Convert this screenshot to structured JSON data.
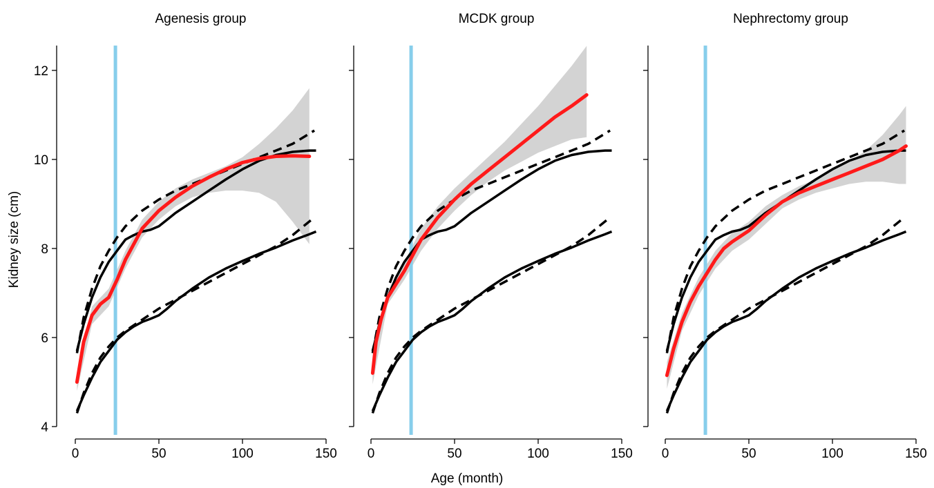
{
  "figure": {
    "ylabel": "Kidney size (cm)",
    "xlabel": "Age (month)"
  },
  "colors": {
    "observed": "#ff1a1a",
    "band": "#d3d3d3",
    "reference": "#000000",
    "marker_line": "#87ceeb"
  },
  "chart_data": [
    {
      "type": "line",
      "title": "Agenesis group",
      "xlim": [
        0,
        150
      ],
      "ylim": [
        4,
        12.5
      ],
      "xticks": [
        0,
        50,
        100,
        150
      ],
      "yticks": [
        4,
        6,
        8,
        10,
        12
      ],
      "vline_x": 24,
      "series": [
        {
          "role": "observed",
          "style": "solid-red",
          "x": [
            1,
            5,
            10,
            15,
            20,
            25,
            30,
            40,
            50,
            60,
            70,
            80,
            90,
            100,
            110,
            120,
            130,
            140
          ],
          "y": [
            5.0,
            5.9,
            6.5,
            6.75,
            6.9,
            7.3,
            7.75,
            8.45,
            8.85,
            9.15,
            9.4,
            9.6,
            9.78,
            9.93,
            10.02,
            10.07,
            10.08,
            10.07
          ]
        },
        {
          "role": "confidence-band",
          "style": "band",
          "x": [
            1,
            10,
            20,
            30,
            40,
            50,
            60,
            70,
            80,
            90,
            100,
            110,
            120,
            130,
            140
          ],
          "upper": [
            5.2,
            6.7,
            7.1,
            7.95,
            8.65,
            9.05,
            9.35,
            9.55,
            9.7,
            9.85,
            10.05,
            10.35,
            10.7,
            11.1,
            11.6
          ],
          "lower": [
            4.8,
            6.3,
            6.7,
            7.55,
            8.25,
            8.65,
            8.95,
            9.15,
            9.25,
            9.3,
            9.3,
            9.25,
            9.05,
            8.6,
            8.1
          ]
        }
      ]
    },
    {
      "type": "line",
      "title": "MCDK group",
      "xlim": [
        0,
        150
      ],
      "ylim": [
        4,
        12.5
      ],
      "xticks": [
        0,
        50,
        100,
        150
      ],
      "yticks": [
        4,
        6,
        8,
        10,
        12
      ],
      "vline_x": 24,
      "series": [
        {
          "role": "observed",
          "style": "solid-red",
          "x": [
            1,
            3,
            6,
            10,
            15,
            20,
            25,
            30,
            40,
            50,
            60,
            70,
            80,
            90,
            100,
            110,
            120,
            129
          ],
          "y": [
            5.2,
            5.9,
            6.4,
            6.9,
            7.2,
            7.5,
            7.85,
            8.2,
            8.7,
            9.1,
            9.45,
            9.75,
            10.05,
            10.35,
            10.65,
            10.95,
            11.2,
            11.45
          ]
        },
        {
          "role": "confidence-band",
          "style": "band",
          "x": [
            1,
            10,
            20,
            30,
            40,
            50,
            60,
            70,
            80,
            90,
            100,
            110,
            120,
            129
          ],
          "upper": [
            5.45,
            7.05,
            7.7,
            8.45,
            8.95,
            9.35,
            9.7,
            10.05,
            10.4,
            10.8,
            11.2,
            11.65,
            12.1,
            12.55
          ],
          "lower": [
            4.95,
            6.75,
            7.3,
            7.95,
            8.45,
            8.85,
            9.2,
            9.5,
            9.75,
            9.95,
            10.15,
            10.3,
            10.45,
            10.5
          ]
        }
      ]
    },
    {
      "type": "line",
      "title": "Nephrectomy group",
      "xlim": [
        0,
        150
      ],
      "ylim": [
        4,
        12.5
      ],
      "xticks": [
        0,
        50,
        100,
        150
      ],
      "yticks": [
        4,
        6,
        8,
        10,
        12
      ],
      "vline_x": 24,
      "series": [
        {
          "role": "observed",
          "style": "solid-red",
          "x": [
            1,
            5,
            10,
            15,
            20,
            25,
            30,
            35,
            40,
            50,
            60,
            70,
            80,
            90,
            100,
            110,
            120,
            130,
            140,
            144
          ],
          "y": [
            5.15,
            5.75,
            6.35,
            6.8,
            7.15,
            7.45,
            7.75,
            8.0,
            8.15,
            8.4,
            8.75,
            9.05,
            9.25,
            9.4,
            9.55,
            9.7,
            9.85,
            10.0,
            10.2,
            10.3
          ]
        },
        {
          "role": "confidence-band",
          "style": "band",
          "x": [
            1,
            10,
            20,
            30,
            40,
            50,
            60,
            70,
            80,
            90,
            100,
            110,
            120,
            130,
            140,
            144
          ],
          "upper": [
            5.45,
            6.55,
            7.35,
            7.95,
            8.35,
            8.6,
            8.95,
            9.2,
            9.4,
            9.55,
            9.75,
            9.95,
            10.2,
            10.55,
            11.0,
            11.2
          ],
          "lower": [
            4.85,
            6.15,
            6.95,
            7.55,
            7.95,
            8.2,
            8.55,
            8.9,
            9.1,
            9.25,
            9.35,
            9.45,
            9.5,
            9.5,
            9.45,
            9.45
          ]
        }
      ]
    }
  ],
  "reference_curves": [
    {
      "style": "dashed",
      "label_role": "upper-reference",
      "x": [
        1,
        5,
        10,
        15,
        20,
        25,
        30,
        40,
        50,
        60,
        70,
        80,
        90,
        100,
        110,
        120,
        130,
        143
      ],
      "y": [
        5.65,
        6.45,
        7.1,
        7.6,
        7.95,
        8.25,
        8.5,
        8.85,
        9.1,
        9.3,
        9.45,
        9.6,
        9.75,
        9.9,
        10.05,
        10.2,
        10.35,
        10.65
      ]
    },
    {
      "style": "solid",
      "label_role": "upper-reference",
      "x": [
        1,
        5,
        10,
        15,
        20,
        25,
        30,
        35,
        40,
        45,
        50,
        55,
        60,
        70,
        80,
        90,
        100,
        110,
        120,
        130,
        140,
        144
      ],
      "y": [
        5.7,
        6.3,
        6.9,
        7.35,
        7.7,
        7.95,
        8.2,
        8.3,
        8.38,
        8.42,
        8.5,
        8.65,
        8.8,
        9.05,
        9.3,
        9.55,
        9.78,
        9.97,
        10.1,
        10.17,
        10.2,
        10.2
      ]
    },
    {
      "style": "dashed",
      "label_role": "lower-reference",
      "x": [
        1,
        5,
        10,
        15,
        20,
        25,
        30,
        40,
        50,
        60,
        70,
        80,
        90,
        100,
        110,
        120,
        130,
        143
      ],
      "y": [
        4.3,
        4.75,
        5.2,
        5.55,
        5.8,
        6.0,
        6.15,
        6.4,
        6.65,
        6.85,
        7.05,
        7.25,
        7.45,
        7.65,
        7.85,
        8.05,
        8.3,
        8.7
      ]
    },
    {
      "style": "solid",
      "label_role": "lower-reference",
      "x": [
        1,
        5,
        10,
        15,
        20,
        25,
        30,
        35,
        40,
        45,
        50,
        55,
        60,
        70,
        80,
        90,
        100,
        110,
        120,
        130,
        140,
        144
      ],
      "y": [
        4.35,
        4.7,
        5.1,
        5.45,
        5.7,
        5.95,
        6.12,
        6.25,
        6.35,
        6.42,
        6.5,
        6.65,
        6.82,
        7.1,
        7.35,
        7.55,
        7.72,
        7.88,
        8.02,
        8.18,
        8.32,
        8.38
      ]
    }
  ]
}
